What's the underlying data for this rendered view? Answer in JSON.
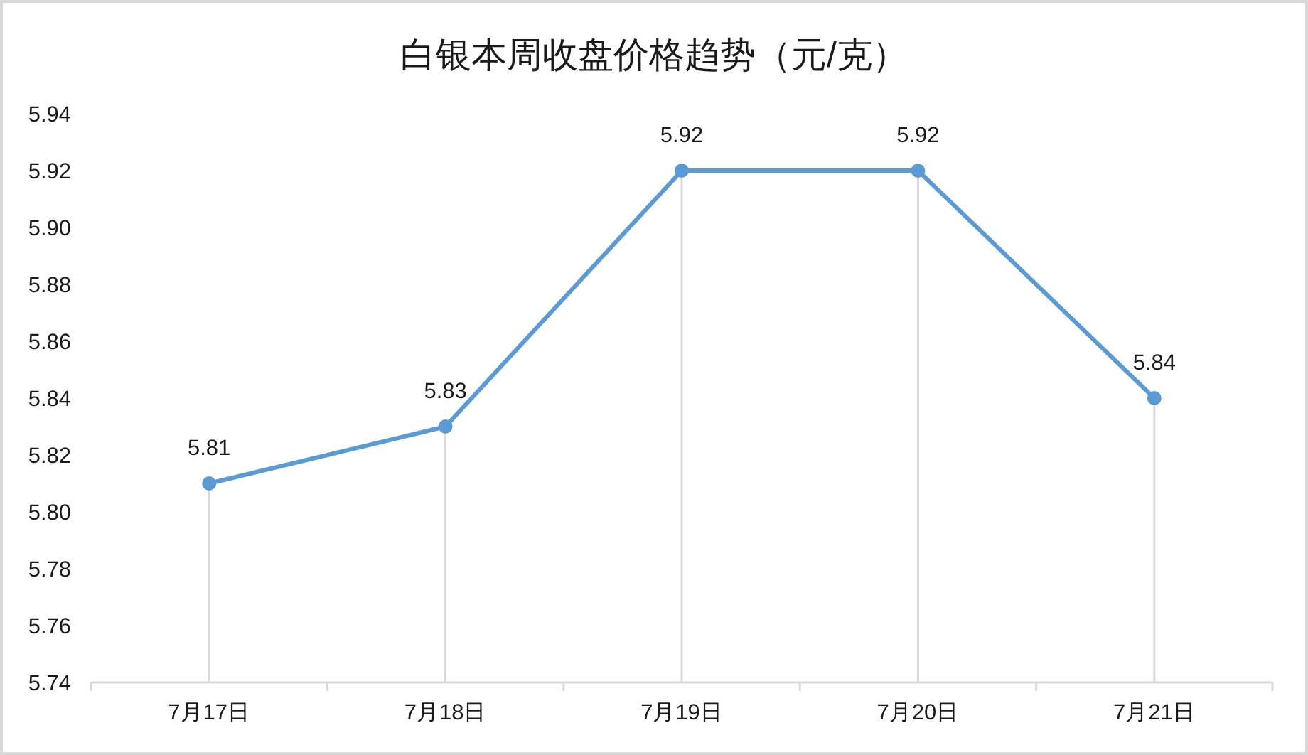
{
  "chart_data": {
    "type": "line",
    "title": "白银本周收盘价格趋势（元/克）",
    "categories": [
      "7月17日",
      "7月18日",
      "7月19日",
      "7月20日",
      "7月21日"
    ],
    "series": [
      {
        "color": "#5b9bd5",
        "values": [
          5.81,
          5.83,
          5.92,
          5.92,
          5.84
        ]
      }
    ],
    "ylim": [
      5.74,
      5.94
    ],
    "yticks": [
      5.74,
      5.76,
      5.78,
      {
        "value": 5.8,
        "label": "5.80"
      },
      5.82,
      5.84,
      5.86,
      5.88,
      {
        "value": 5.9,
        "label": "5.90"
      },
      5.92,
      5.94
    ],
    "marker": "circle",
    "data_labels": true
  }
}
